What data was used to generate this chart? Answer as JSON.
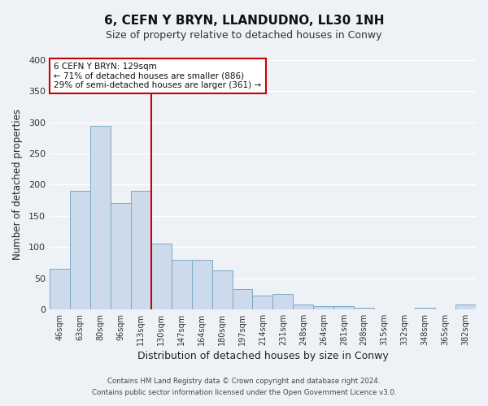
{
  "title": "6, CEFN Y BRYN, LLANDUDNO, LL30 1NH",
  "subtitle": "Size of property relative to detached houses in Conwy",
  "xlabel": "Distribution of detached houses by size in Conwy",
  "ylabel": "Number of detached properties",
  "bar_labels": [
    "46sqm",
    "63sqm",
    "80sqm",
    "96sqm",
    "113sqm",
    "130sqm",
    "147sqm",
    "164sqm",
    "180sqm",
    "197sqm",
    "214sqm",
    "231sqm",
    "248sqm",
    "264sqm",
    "281sqm",
    "298sqm",
    "315sqm",
    "332sqm",
    "348sqm",
    "365sqm",
    "382sqm"
  ],
  "bar_heights": [
    65,
    190,
    295,
    170,
    190,
    105,
    80,
    80,
    62,
    33,
    22,
    25,
    8,
    5,
    5,
    3,
    0,
    0,
    2,
    0,
    8
  ],
  "bar_color": "#ccdaeb",
  "bar_edge_color": "#7aaac8",
  "vline_color": "#cc0000",
  "ylim": [
    0,
    400
  ],
  "yticks": [
    0,
    50,
    100,
    150,
    200,
    250,
    300,
    350,
    400
  ],
  "annotation_title": "6 CEFN Y BRYN: 129sqm",
  "annotation_line1": "← 71% of detached houses are smaller (886)",
  "annotation_line2": "29% of semi-detached houses are larger (361) →",
  "annotation_box_color": "#ffffff",
  "annotation_box_edge": "#cc0000",
  "footer_line1": "Contains HM Land Registry data © Crown copyright and database right 2024.",
  "footer_line2": "Contains public sector information licensed under the Open Government Licence v3.0.",
  "background_color": "#eef2f7",
  "grid_color": "#ffffff"
}
